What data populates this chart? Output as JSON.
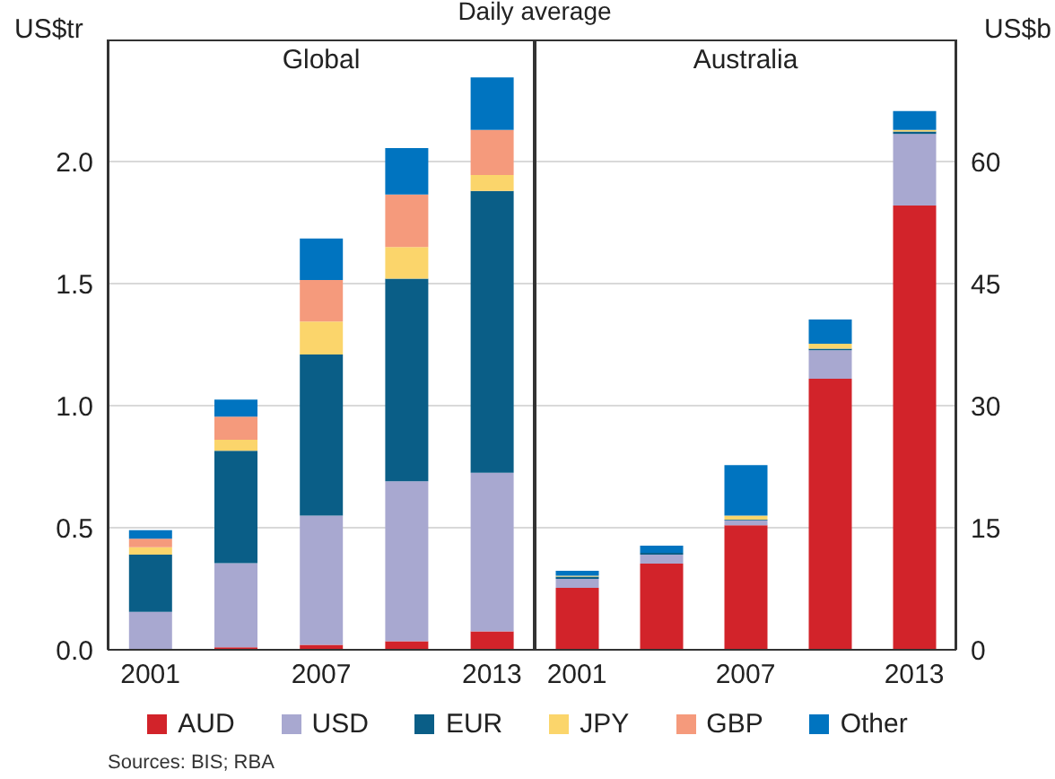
{
  "chart_data": [
    {
      "type": "bar",
      "title": "Daily average",
      "subtitle": "Global",
      "ylabel": "US$tr",
      "stacked": true,
      "grid": "y",
      "legend": "bottom",
      "categories": [
        "2001",
        null,
        "2007",
        null,
        "2013"
      ],
      "ylim": [
        0,
        2.5
      ],
      "yticks": [
        {
          "value": 0,
          "label": "0.0"
        },
        {
          "value": 0.5,
          "label": "0.5"
        },
        {
          "value": 1,
          "label": "1.0"
        },
        {
          "value": 1.5,
          "label": "1.5"
        },
        {
          "value": 2,
          "label": "2.0"
        }
      ],
      "series": [
        {
          "name": "AUD",
          "color": "#d2232a",
          "values": [
            0,
            0.01,
            0.02,
            0.035,
            0.075
          ]
        },
        {
          "name": "USD",
          "color": "#a8a8d0",
          "values": [
            0.155,
            0.345,
            0.53,
            0.655,
            0.65
          ]
        },
        {
          "name": "EUR",
          "color": "#0a5e87",
          "values": [
            0.235,
            0.46,
            0.66,
            0.83,
            1.155
          ]
        },
        {
          "name": "JPY",
          "color": "#fbd56b",
          "values": [
            0.03,
            0.045,
            0.135,
            0.13,
            0.065
          ]
        },
        {
          "name": "GBP",
          "color": "#f59a7c",
          "values": [
            0.035,
            0.095,
            0.17,
            0.215,
            0.185
          ]
        },
        {
          "name": "Other",
          "color": "#0074c0",
          "values": [
            0.035,
            0.07,
            0.17,
            0.19,
            0.215
          ]
        }
      ],
      "annotations": [
        "Sources: BIS; RBA"
      ]
    },
    {
      "type": "bar",
      "subtitle": "Australia",
      "ylabel": "US$b",
      "stacked": true,
      "grid": "y",
      "categories": [
        "2001",
        null,
        "2007",
        null,
        "2013"
      ],
      "ylim": [
        0,
        75
      ],
      "yticks": [
        0,
        15,
        30,
        45,
        60
      ],
      "series": [
        {
          "color": "#d2232a",
          "values": [
            7.6,
            10.6,
            15.3,
            33.3,
            54.6
          ]
        },
        {
          "color": "#a8a8d0",
          "values": [
            1.1,
            1.1,
            0.6,
            3.5,
            8.8
          ]
        },
        {
          "color": "#0a5e87",
          "values": [
            0.3,
            0.2,
            0.1,
            0.2,
            0.3
          ]
        },
        {
          "color": "#fbd56b",
          "values": [
            0.1,
            0,
            0.5,
            0.6,
            0.2
          ]
        },
        {
          "color": "#f59a7c",
          "values": [
            0,
            0,
            0,
            0,
            0
          ]
        },
        {
          "color": "#0074c0",
          "values": [
            0.6,
            0.9,
            6.2,
            3,
            2.3
          ]
        }
      ]
    }
  ]
}
